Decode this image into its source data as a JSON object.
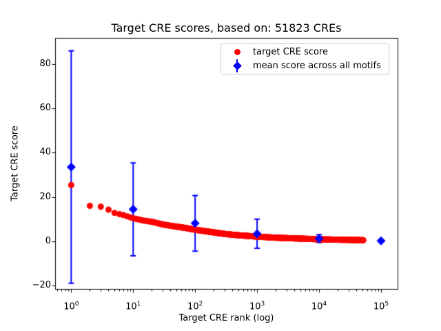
{
  "chart_data": {
    "type": "scatter",
    "title": "Target CRE scores, based on: 51823 CREs",
    "xlabel": "Target CRE rank (log)",
    "ylabel": "Target CRE score",
    "x_scale": "log",
    "xlim": [
      0.55,
      185000
    ],
    "ylim": [
      -21.7,
      91.7
    ],
    "grid": false,
    "x_ticks": [
      {
        "value": 1,
        "base": "10",
        "exp": "0"
      },
      {
        "value": 10,
        "base": "10",
        "exp": "1"
      },
      {
        "value": 100,
        "base": "10",
        "exp": "2"
      },
      {
        "value": 1000,
        "base": "10",
        "exp": "3"
      },
      {
        "value": 10000,
        "base": "10",
        "exp": "4"
      },
      {
        "value": 100000,
        "base": "10",
        "exp": "5"
      }
    ],
    "y_ticks": [
      {
        "value": -20,
        "label": "−20"
      },
      {
        "value": 0,
        "label": "0"
      },
      {
        "value": 20,
        "label": "20"
      },
      {
        "value": 40,
        "label": "40"
      },
      {
        "value": 60,
        "label": "60"
      },
      {
        "value": 80,
        "label": "80"
      }
    ],
    "legend_position": "upper right",
    "series": [
      {
        "name": "target CRE score",
        "type": "scatter",
        "marker": "circle",
        "color": "#ff0000",
        "total_points": 51823,
        "curve_points": [
          [
            1,
            25.4
          ],
          [
            2,
            16.0
          ],
          [
            3,
            15.6
          ],
          [
            4,
            14.3
          ],
          [
            5,
            12.8
          ],
          [
            7,
            11.8
          ],
          [
            10,
            10.4
          ],
          [
            15,
            9.3
          ],
          [
            20,
            8.8
          ],
          [
            30,
            7.6
          ],
          [
            40,
            7.0
          ],
          [
            70,
            6.0
          ],
          [
            100,
            5.2
          ],
          [
            200,
            4.0
          ],
          [
            300,
            3.3
          ],
          [
            500,
            2.7
          ],
          [
            1000,
            2.1
          ],
          [
            2000,
            1.6
          ],
          [
            5000,
            1.2
          ],
          [
            10000,
            0.9
          ],
          [
            20000,
            0.7
          ],
          [
            51823,
            0.5
          ]
        ]
      },
      {
        "name": "mean score across all motifs",
        "type": "errorbar",
        "marker": "diamond",
        "color": "#0000ff",
        "points": [
          {
            "x": 1,
            "y": 33.5,
            "err": 52.5
          },
          {
            "x": 10,
            "y": 14.4,
            "err": 21.0
          },
          {
            "x": 100,
            "y": 8.1,
            "err": 12.6
          },
          {
            "x": 1000,
            "y": 3.4,
            "err": 6.6
          },
          {
            "x": 10000,
            "y": 1.2,
            "err": 1.8
          },
          {
            "x": 100000,
            "y": 0.2,
            "err": 0.3
          }
        ]
      }
    ]
  }
}
